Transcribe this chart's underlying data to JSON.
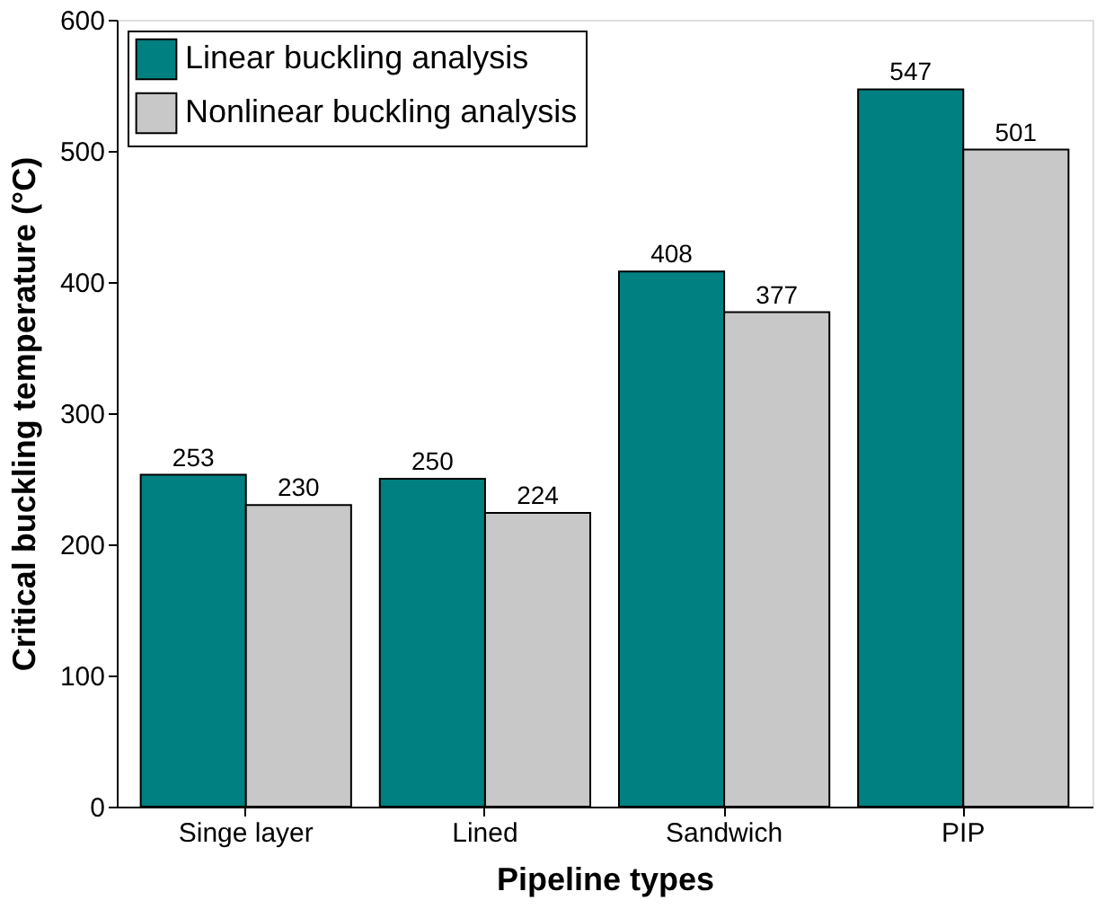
{
  "chart_data": {
    "type": "bar",
    "xlabel": "Pipeline types",
    "ylabel": "Critical buckling temperature (°C)",
    "categories": [
      "Singe layer",
      "Lined",
      "Sandwich",
      "PIP"
    ],
    "series": [
      {
        "name": "Linear buckling analysis",
        "color": "#008080",
        "values": [
          253,
          250,
          408,
          547
        ]
      },
      {
        "name": "Nonlinear buckling analysis",
        "color": "#c8c8c8",
        "values": [
          230,
          224,
          377,
          501
        ]
      }
    ],
    "ylim": [
      0,
      600
    ],
    "yticks": [
      0,
      100,
      200,
      300,
      400,
      500,
      600
    ],
    "data_labels": true,
    "legend": "top left",
    "grid": false
  }
}
